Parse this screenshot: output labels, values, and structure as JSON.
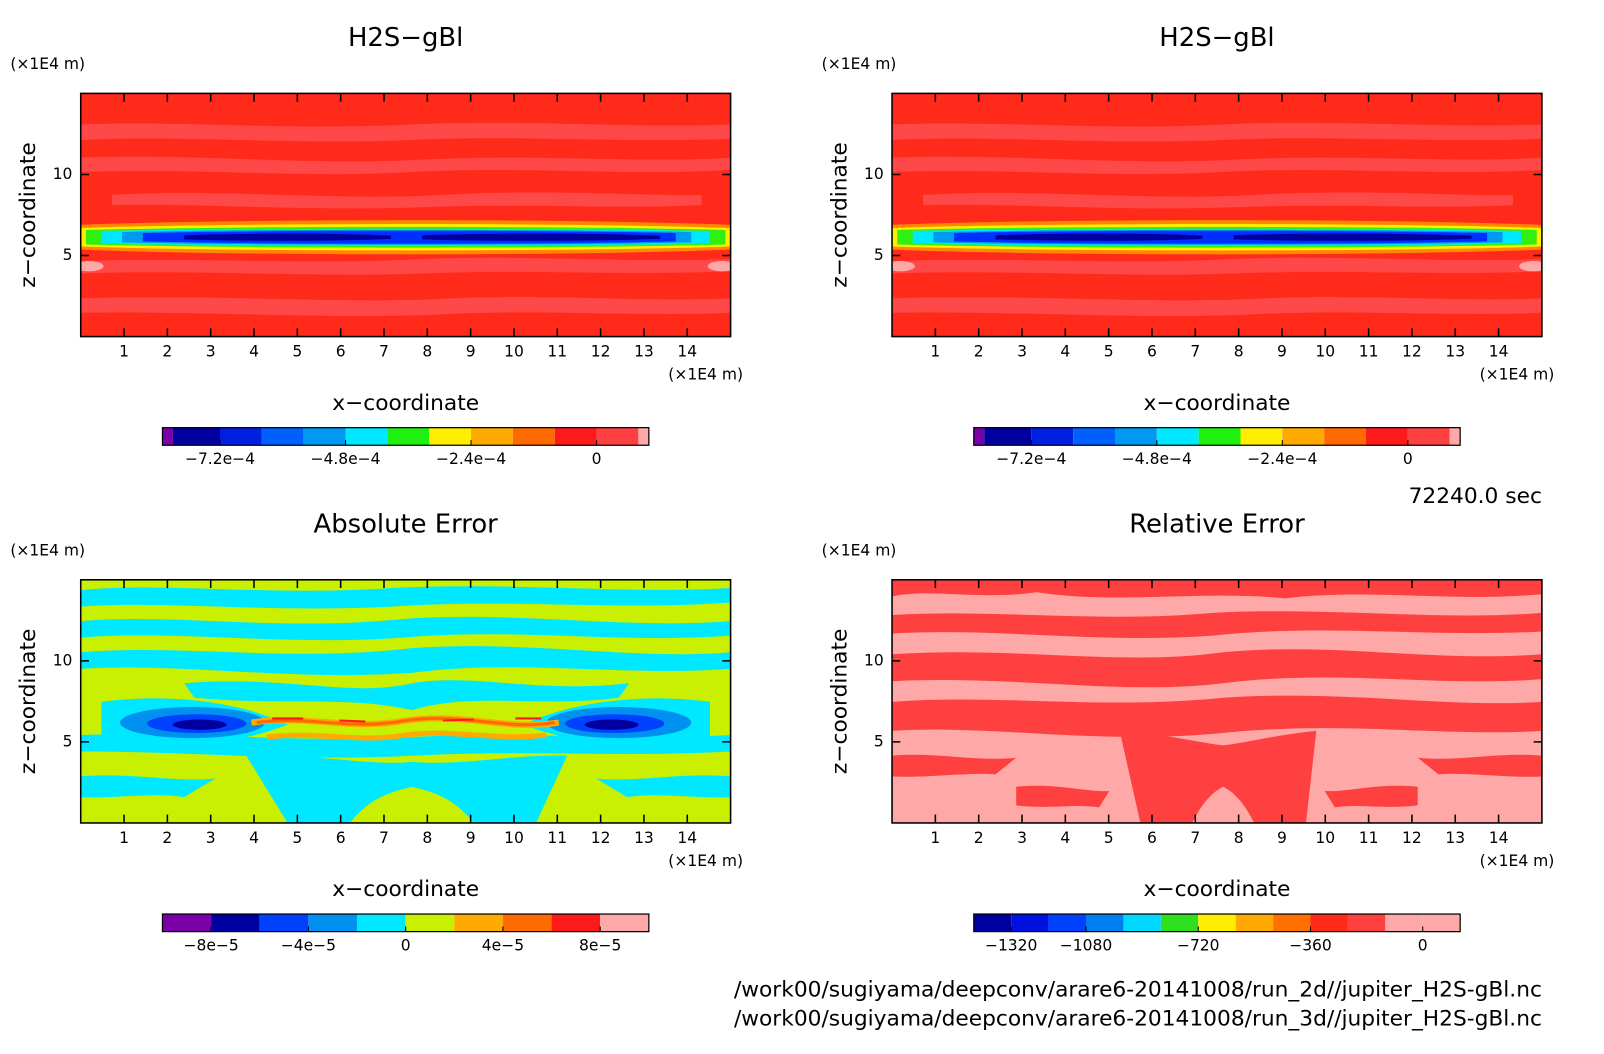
{
  "chart_data": [
    {
      "type": "contour",
      "title": "H2S−gBl",
      "x_label": "x−coordinate",
      "y_label": "z−coordinate",
      "x_unit": "(×1E4 m)",
      "y_unit": "(×1E4 m)",
      "xlim": [
        0,
        15
      ],
      "xticks": [
        1,
        2,
        3,
        4,
        5,
        6,
        7,
        8,
        9,
        10,
        11,
        12,
        13,
        14
      ],
      "ylim": [
        0,
        15
      ],
      "yticks": [
        5,
        10
      ],
      "colorbar": {
        "levels": [
          -0.00083,
          -0.00081,
          -0.00072,
          -0.00064,
          -0.00056,
          -0.00048,
          -0.0004,
          -0.00032,
          -0.00024,
          -0.00016,
          -8e-05,
          0,
          8e-05,
          0.0001
        ],
        "colors": [
          "#7a00a8",
          "#0000a0",
          "#0020e0",
          "#0060ff",
          "#0098f0",
          "#00e8ff",
          "#20f010",
          "#ffee00",
          "#ffaa00",
          "#ff6a00",
          "#ff1a1a",
          "#ff4040",
          "#ffa8a8"
        ],
        "ticks": [
          {
            "value": -0.00072,
            "label": "−7.2e−4"
          },
          {
            "value": -0.00048,
            "label": "−4.8e−4"
          },
          {
            "value": -0.00024,
            "label": "−2.4e−4"
          },
          0
        ]
      }
    },
    {
      "type": "contour",
      "title": "H2S−gBl",
      "x_label": "x−coordinate",
      "y_label": "z−coordinate",
      "x_unit": "(×1E4 m)",
      "y_unit": "(×1E4 m)",
      "xlim": [
        0,
        15
      ],
      "xticks": [
        1,
        2,
        3,
        4,
        5,
        6,
        7,
        8,
        9,
        10,
        11,
        12,
        13,
        14
      ],
      "ylim": [
        0,
        15
      ],
      "yticks": [
        5,
        10
      ],
      "colorbar": {
        "levels": [
          -0.00083,
          -0.00081,
          -0.00072,
          -0.00064,
          -0.00056,
          -0.00048,
          -0.0004,
          -0.00032,
          -0.00024,
          -0.00016,
          -8e-05,
          0,
          8e-05,
          0.0001
        ],
        "colors": [
          "#7a00a8",
          "#0000a0",
          "#0020e0",
          "#0060ff",
          "#0098f0",
          "#00e8ff",
          "#20f010",
          "#ffee00",
          "#ffaa00",
          "#ff6a00",
          "#ff1a1a",
          "#ff4040",
          "#ffa8a8"
        ],
        "ticks": [
          {
            "value": -0.00072,
            "label": "−7.2e−4"
          },
          {
            "value": -0.00048,
            "label": "−4.8e−4"
          },
          {
            "value": -0.00024,
            "label": "−2.4e−4"
          },
          0
        ]
      }
    },
    {
      "type": "contour",
      "title": "Absolute Error",
      "x_label": "x−coordinate",
      "y_label": "z−coordinate",
      "x_unit": "(×1E4 m)",
      "y_unit": "(×1E4 m)",
      "xlim": [
        0,
        15
      ],
      "xticks": [
        1,
        2,
        3,
        4,
        5,
        6,
        7,
        8,
        9,
        10,
        11,
        12,
        13,
        14
      ],
      "ylim": [
        0,
        15
      ],
      "yticks": [
        5,
        10
      ],
      "colorbar": {
        "levels": [
          -0.0001,
          -8e-05,
          -6e-05,
          -4e-05,
          -2e-05,
          0,
          2e-05,
          4e-05,
          6e-05,
          8e-05,
          0.0001
        ],
        "colors": [
          "#7a00a8",
          "#0000a0",
          "#0040ff",
          "#0090f0",
          "#00e8ff",
          "#c8f000",
          "#ffaa00",
          "#ff6a00",
          "#ff1a1a",
          "#ffa8a8"
        ],
        "ticks": [
          {
            "value": -8e-05,
            "label": "−8e−5"
          },
          {
            "value": -4e-05,
            "label": "−4e−5"
          },
          0,
          {
            "value": 4e-05,
            "label": "4e−5"
          },
          {
            "value": 8e-05,
            "label": "8e−5"
          }
        ]
      }
    },
    {
      "type": "contour",
      "title": "Relative Error",
      "x_label": "x−coordinate",
      "y_label": "z−coordinate",
      "x_unit": "(×1E4 m)",
      "y_unit": "(×1E4 m)",
      "xlim": [
        0,
        15
      ],
      "xticks": [
        1,
        2,
        3,
        4,
        5,
        6,
        7,
        8,
        9,
        10,
        11,
        12,
        13,
        14
      ],
      "ylim": [
        0,
        15
      ],
      "yticks": [
        5,
        10
      ],
      "colorbar": {
        "levels": [
          -1440,
          -1320,
          -1200,
          -1080,
          -960,
          -840,
          -720,
          -600,
          -480,
          -360,
          -240,
          -120,
          0,
          120
        ],
        "colors": [
          "#0000a0",
          "#0010e0",
          "#0040ff",
          "#0080f0",
          "#00d8ff",
          "#30e020",
          "#ffee00",
          "#ffaa00",
          "#ff7000",
          "#ff2a1a",
          "#ff4040",
          "#ffa8a8",
          "#ffa8a8"
        ],
        "ticks": [
          {
            "value": -1320,
            "label": "−1320"
          },
          {
            "value": -1080,
            "label": "−1080"
          },
          {
            "value": -720,
            "label": "−720"
          },
          {
            "value": -360,
            "label": "−360"
          },
          0
        ]
      }
    }
  ],
  "footer": {
    "time": "72240.0 sec",
    "files": [
      "/work00/sugiyama/deepconv/arare6-20141008/run_2d//jupiter_H2S-gBl.nc",
      "/work00/sugiyama/deepconv/arare6-20141008/run_3d//jupiter_H2S-gBl.nc"
    ]
  }
}
